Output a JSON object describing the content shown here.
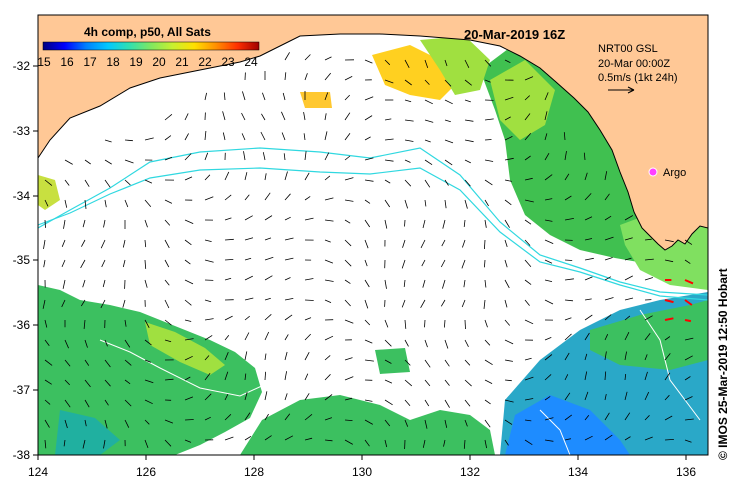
{
  "title": "20-Mar-2019 16Z",
  "colorbar": {
    "label": "4h comp, p50, All Sats",
    "ticks": [
      "15",
      "16",
      "17",
      "18",
      "19",
      "20",
      "21",
      "22",
      "23",
      "24"
    ],
    "colors": [
      "#00007f",
      "#0000ff",
      "#0080ff",
      "#00c8ff",
      "#30e0b0",
      "#80e860",
      "#c8f030",
      "#ffe000",
      "#ff9000",
      "#ff3000",
      "#a00000"
    ]
  },
  "reference": {
    "line1": "NRT00 GSL",
    "line2": "20-Mar 00:00Z",
    "line3": "0.5m/s (1kt 24h)"
  },
  "argo_label": "Argo",
  "credit": "© IMOS 25-Mar-2019 12:50 Hobart",
  "axes": {
    "x_ticks": [
      "124",
      "126",
      "128",
      "130",
      "132",
      "134",
      "136"
    ],
    "y_ticks": [
      "-32",
      "-33",
      "-34",
      "-35",
      "-36",
      "-37",
      "-38"
    ]
  },
  "colors": {
    "land": "#ffc896",
    "cold": "#1e8cff",
    "mid": "#30c060",
    "warm": "#a0e040",
    "hot": "#ffd020",
    "contour": "#30d8e0",
    "vector_red": "#ff0000"
  }
}
